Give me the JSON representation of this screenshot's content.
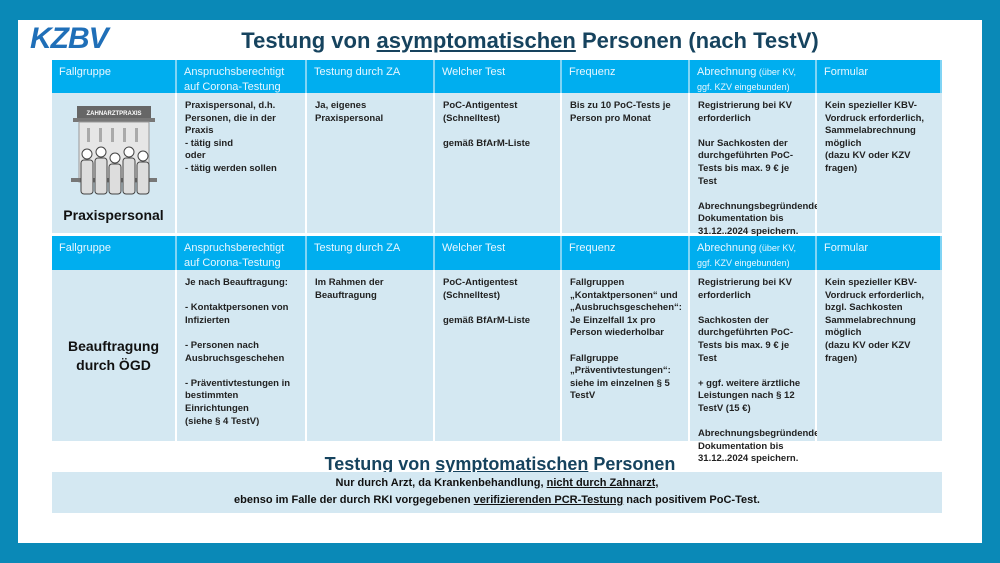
{
  "logo": "KZBV",
  "title": {
    "pre": "Testung von ",
    "underlined": "asymptomatischen",
    "post": " Personen (nach TestV)"
  },
  "headers": [
    {
      "main": "Fallgruppe",
      "small": ""
    },
    {
      "main": "Anspruchsberechtigt auf Corona-Testung",
      "small": ""
    },
    {
      "main": "Testung durch ZA",
      "small": ""
    },
    {
      "main": "Welcher  Test",
      "small": ""
    },
    {
      "main": "Frequenz",
      "small": ""
    },
    {
      "main": "Abrechnung",
      "small": " (über KV, ggf. KZV eingebunden)"
    },
    {
      "main": "Formular",
      "small": ""
    }
  ],
  "rows": [
    {
      "group": "Praxispersonal",
      "building_sign": "ZAHNARZTPRAXIS",
      "cells": [
        "Praxispersonal, d.h. Personen, die in der Praxis\n- tätig sind\noder\n-  tätig werden sollen",
        "Ja, eigenes Praxispersonal",
        "PoC-Antigentest (Schnelltest)\n\ngemäß BfArM-Liste",
        "Bis zu 10 PoC-Tests je Person pro Monat",
        "Registrierung bei KV erforderlich\n\nNur Sachkosten der durchgeführten PoC-Tests bis max. 9 € je Test\n\nAbrechnungsbegründende Dokumentation bis 31.12..2024  speichern.",
        "Kein spezieller KBV-Vordruck erforderlich, Sammelabrechnung möglich\n(dazu KV oder KZV fragen)"
      ]
    },
    {
      "group": "Beauftragung\ndurch ÖGD",
      "cells": [
        "Je nach Beauftragung:\n\n-   Kontaktpersonen von Infizierten\n\n-   Personen nach Ausbruchsgeschehen\n\n-   Präventivtestungen in bestimmten Einrichtungen\n (siehe § 4 TestV)",
        "Im Rahmen der Beauftragung",
        "PoC-Antigentest (Schnelltest)\n\ngemäß BfArM-Liste",
        "Fallgruppen „Kontaktpersonen“ und „Ausbruchsgeschehen“: Je Einzelfall  1x pro Person wiederholbar\n\nFallgruppe „Präventivtestungen“: siehe im einzelnen § 5 TestV",
        "Registrierung bei KV erforderlich\n\nSachkosten der durchgeführten PoC-Tests bis max. 9 € je Test\n\n+ ggf. weitere ärztliche Leistungen nach § 12 TestV (15 €)\n\nAbrechnungsbegründende Dokumentation bis 31.12..2024  speichern.",
        "Kein spezieller KBV-Vordruck erforderlich, bzgl. Sachkosten Sammelabrechnung möglich\n(dazu KV oder KZV fragen)"
      ]
    }
  ],
  "subtitle": {
    "pre": "Testung von ",
    "underlined": "symptomatischen",
    "post": " Personen"
  },
  "footer": {
    "l1_pre": "Nur durch Arzt, da Krankenbehandlung, ",
    "l1_u": "nicht durch Zahnarzt,",
    "l2_pre": "ebenso im Falle der durch RKI vorgegebenen ",
    "l2_u": "verifizierenden PCR-Testung",
    "l2_post": " nach positivem PoC-Test."
  },
  "colors": {
    "background": "#0a89b7",
    "header": "#00aeef",
    "cell": "#d4e8f2",
    "title": "#16435e",
    "logo": "#1f6fb8"
  }
}
